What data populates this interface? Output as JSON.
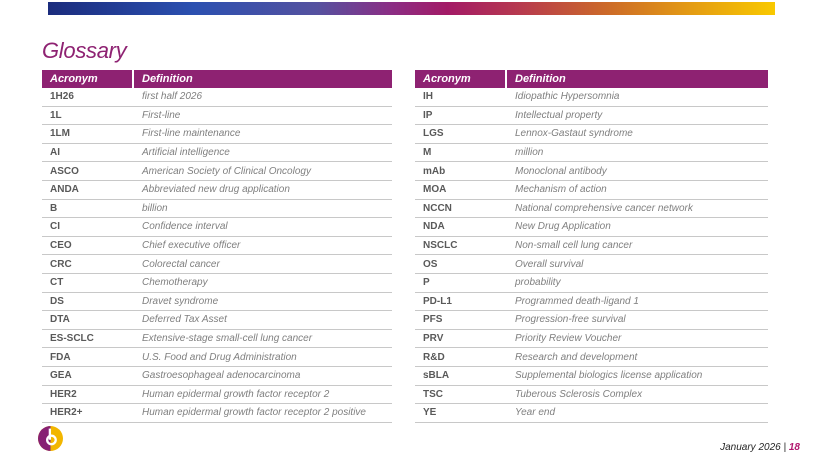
{
  "slide": {
    "title": "Glossary",
    "footer": {
      "date": "January 2026",
      "separator": "|",
      "page": "18"
    }
  },
  "colors": {
    "header_bg": "#8E2272",
    "title_text": "#8E2272",
    "acronym_text": "#595959",
    "definition_text": "#7F7F7F",
    "row_border": "#C8C8C8",
    "page_number": "#B2176E",
    "logo_purple": "#872074",
    "logo_yellow": "#F2B600",
    "accent_gradient": [
      "#1B2C7D",
      "#2B50B0",
      "#55519F",
      "#8A2E85",
      "#A31A66",
      "#B73A4E",
      "#CC6A28",
      "#E39A14",
      "#F9C900"
    ]
  },
  "tables": [
    {
      "columns": [
        "Acronym",
        "Definition"
      ],
      "rows": [
        {
          "acronym": "1H26",
          "definition": "first half 2026"
        },
        {
          "acronym": "1L",
          "definition": "First-line"
        },
        {
          "acronym": "1LM",
          "definition": "First-line maintenance"
        },
        {
          "acronym": "AI",
          "definition": "Artificial intelligence"
        },
        {
          "acronym": "ASCO",
          "definition": "American Society of Clinical Oncology"
        },
        {
          "acronym": "ANDA",
          "definition": "Abbreviated new drug application"
        },
        {
          "acronym": "B",
          "definition": "billion"
        },
        {
          "acronym": "CI",
          "definition": "Confidence interval"
        },
        {
          "acronym": "CEO",
          "definition": "Chief executive officer"
        },
        {
          "acronym": "CRC",
          "definition": "Colorectal cancer"
        },
        {
          "acronym": "CT",
          "definition": "Chemotherapy"
        },
        {
          "acronym": "DS",
          "definition": "Dravet syndrome"
        },
        {
          "acronym": "DTA",
          "definition": "Deferred Tax Asset"
        },
        {
          "acronym": "ES-SCLC",
          "definition": "Extensive-stage small-cell lung cancer"
        },
        {
          "acronym": "FDA",
          "definition": "U.S. Food and Drug Administration"
        },
        {
          "acronym": "GEA",
          "definition": "Gastroesophageal adenocarcinoma"
        },
        {
          "acronym": "HER2",
          "definition": "Human epidermal growth factor receptor 2"
        },
        {
          "acronym": "HER2+",
          "definition": "Human epidermal growth factor receptor 2 positive"
        }
      ]
    },
    {
      "columns": [
        "Acronym",
        "Definition"
      ],
      "rows": [
        {
          "acronym": "IH",
          "definition": "Idiopathic Hypersomnia"
        },
        {
          "acronym": "IP",
          "definition": "Intellectual property"
        },
        {
          "acronym": "LGS",
          "definition": "Lennox-Gastaut syndrome"
        },
        {
          "acronym": "M",
          "definition": "million"
        },
        {
          "acronym": "mAb",
          "definition": "Monoclonal antibody"
        },
        {
          "acronym": "MOA",
          "definition": "Mechanism of action"
        },
        {
          "acronym": "NCCN",
          "definition": "National comprehensive cancer network"
        },
        {
          "acronym": "NDA",
          "definition": "New Drug Application"
        },
        {
          "acronym": "NSCLC",
          "definition": "Non-small cell lung cancer"
        },
        {
          "acronym": "OS",
          "definition": "Overall survival"
        },
        {
          "acronym": "P",
          "definition": "probability"
        },
        {
          "acronym": "PD-L1",
          "definition": "Programmed death-ligand 1"
        },
        {
          "acronym": "PFS",
          "definition": "Progression-free survival"
        },
        {
          "acronym": "PRV",
          "definition": "Priority Review Voucher"
        },
        {
          "acronym": "R&D",
          "definition": "Research and development"
        },
        {
          "acronym": "sBLA",
          "definition": "Supplemental biologics license application"
        },
        {
          "acronym": "TSC",
          "definition": "Tuberous Sclerosis Complex"
        },
        {
          "acronym": "YE",
          "definition": "Year end"
        }
      ]
    }
  ]
}
